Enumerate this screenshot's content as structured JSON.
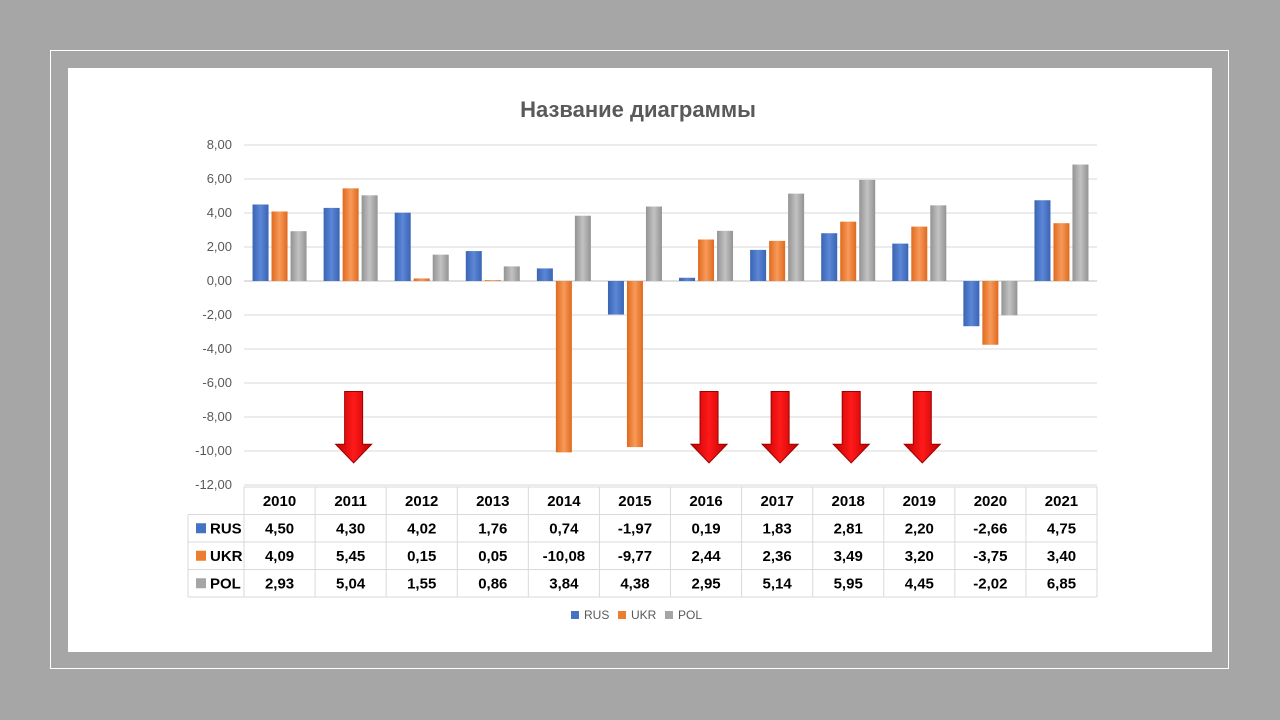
{
  "chart_data": {
    "type": "bar",
    "title": "Название диаграммы",
    "categories": [
      "2010",
      "2011",
      "2012",
      "2013",
      "2014",
      "2015",
      "2016",
      "2017",
      "2018",
      "2019",
      "2020",
      "2021"
    ],
    "series": [
      {
        "name": "RUS",
        "color": "#4472c4",
        "values": [
          4.5,
          4.3,
          4.02,
          1.76,
          0.74,
          -1.97,
          0.19,
          1.83,
          2.81,
          2.2,
          -2.66,
          4.75
        ],
        "labels": [
          "4,50",
          "4,30",
          "4,02",
          "1,76",
          "0,74",
          "-1,97",
          "0,19",
          "1,83",
          "2,81",
          "2,20",
          "-2,66",
          "4,75"
        ]
      },
      {
        "name": "UKR",
        "color": "#ed7d31",
        "values": [
          4.09,
          5.45,
          0.15,
          0.05,
          -10.08,
          -9.77,
          2.44,
          2.36,
          3.49,
          3.2,
          -3.75,
          3.4
        ],
        "labels": [
          "4,09",
          "5,45",
          "0,15",
          "0,05",
          "-10,08",
          "-9,77",
          "2,44",
          "2,36",
          "3,49",
          "3,20",
          "-3,75",
          "3,40"
        ]
      },
      {
        "name": "POL",
        "color": "#a5a5a5",
        "values": [
          2.93,
          5.04,
          1.55,
          0.86,
          3.84,
          4.38,
          2.95,
          5.14,
          5.95,
          4.45,
          -2.02,
          6.85
        ],
        "labels": [
          "2,93",
          "5,04",
          "1,55",
          "0,86",
          "3,84",
          "4,38",
          "2,95",
          "5,14",
          "5,95",
          "4,45",
          "-2,02",
          "6,85"
        ]
      }
    ],
    "ylim": [
      -12,
      8
    ],
    "yticks": [
      8,
      6,
      4,
      2,
      0,
      -2,
      -4,
      -6,
      -8,
      -10,
      -12
    ],
    "ytick_labels": [
      "8,00",
      "6,00",
      "4,00",
      "2,00",
      "0,00",
      "-2,00",
      "-4,00",
      "-6,00",
      "-8,00",
      "-10,00",
      "-12,00"
    ],
    "grid": true,
    "legend": "bottom",
    "data_table": true,
    "annotations": {
      "down_arrows_at": [
        "2011",
        "2016",
        "2017",
        "2018",
        "2019"
      ],
      "arrow_color": "#ff0000"
    }
  }
}
